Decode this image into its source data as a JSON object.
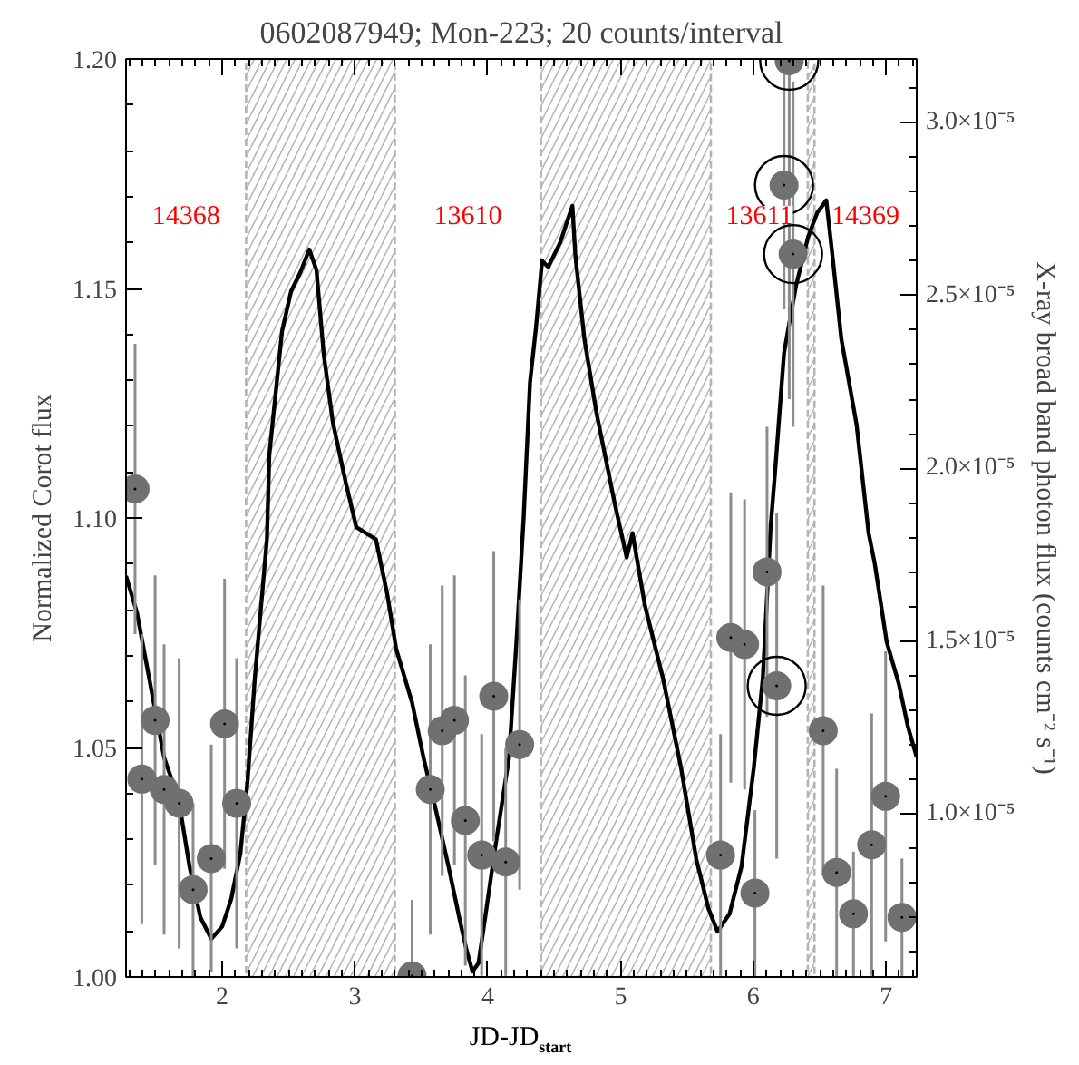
{
  "chart_data": {
    "type": "line",
    "title": "0602087949; Mon-223; 20 counts/interval",
    "xlabel": "JD-JD$_{start}$",
    "ylabel": "Normalized Corot flux",
    "y2label": "X-ray broad band photon flux (counts cm⁻² s⁻¹)",
    "xlim": [
      1.276,
      7.23
    ],
    "xticks": [
      2,
      3,
      4,
      5,
      6,
      7
    ],
    "ylim": [
      1.0,
      1.2
    ],
    "yticks": [
      {
        "value": 1.0,
        "label": "1.00"
      },
      {
        "value": 1.05,
        "label": "1.05"
      },
      {
        "value": 1.1,
        "label": "1.10"
      },
      {
        "value": 1.15,
        "label": "1.15"
      },
      {
        "value": 1.2,
        "label": "1.20"
      }
    ],
    "y2lim": [
      5.27e-06,
      3.185e-05
    ],
    "y2ticks": [
      {
        "value": 1e-05,
        "label": "1.0×10⁻⁵"
      },
      {
        "value": 1.5e-05,
        "label": "1.5×10⁻⁵"
      },
      {
        "value": 2e-05,
        "label": "2.0×10⁻⁵"
      },
      {
        "value": 2.5e-05,
        "label": "2.5×10⁻⁵"
      },
      {
        "value": 3e-05,
        "label": "3.0×10⁻⁵"
      }
    ],
    "grid": false,
    "bands": [
      {
        "axis": "x",
        "from": 2.18,
        "to": 3.3,
        "color": "#b4b4b4"
      },
      {
        "axis": "x",
        "from": 4.4,
        "to": 5.68,
        "color": "#b4b4b4"
      },
      {
        "axis": "x",
        "from": 6.41,
        "to": 6.46,
        "color": "#b4b4b4"
      }
    ],
    "annotations": [
      "14368",
      "13610",
      "13611",
      "14369"
    ],
    "series": [
      {
        "color": "#000000",
        "line_style": "solid",
        "marker": "none",
        "x": [
          1.276,
          1.358,
          1.467,
          1.563,
          1.672,
          1.754,
          1.836,
          1.918,
          2.0,
          2.068,
          2.137,
          2.191,
          2.246,
          2.337,
          2.355,
          2.451,
          2.519,
          2.587,
          2.656,
          2.71,
          2.765,
          2.833,
          2.929,
          3.01,
          3.157,
          3.243,
          3.31,
          3.43,
          3.516,
          3.612,
          3.704,
          3.79,
          3.84,
          3.885,
          3.93,
          3.977,
          4.063,
          4.16,
          4.22,
          4.27,
          4.318,
          4.363,
          4.409,
          4.455,
          4.545,
          4.637,
          4.66,
          4.728,
          4.818,
          4.955,
          5.046,
          5.09,
          5.183,
          5.32,
          5.456,
          5.57,
          5.661,
          5.73,
          5.821,
          5.911,
          6.003,
          6.071,
          6.13,
          6.163,
          6.231,
          6.322,
          6.413,
          6.481,
          6.549,
          6.595,
          6.663,
          6.777,
          6.868,
          6.914,
          7.004,
          7.096,
          7.164,
          7.23
        ],
        "values": [
          1.0874,
          1.0794,
          1.0625,
          1.0478,
          1.0387,
          1.0241,
          1.013,
          1.0083,
          1.011,
          1.017,
          1.0269,
          1.0427,
          1.0652,
          1.0954,
          1.1138,
          1.1407,
          1.1494,
          1.1534,
          1.1585,
          1.154,
          1.1356,
          1.1209,
          1.1079,
          1.098,
          1.0954,
          1.0834,
          1.0715,
          1.0598,
          1.0478,
          1.036,
          1.0241,
          1.0123,
          1.0059,
          1.0012,
          1.003,
          1.0123,
          1.0296,
          1.0478,
          1.075,
          1.1,
          1.1296,
          1.1415,
          1.156,
          1.1547,
          1.16,
          1.168,
          1.157,
          1.1389,
          1.123,
          1.1033,
          1.0914,
          1.0967,
          1.081,
          1.065,
          1.0455,
          1.0257,
          1.015,
          1.0099,
          1.0138,
          1.0241,
          1.0455,
          1.065,
          1.098,
          1.1099,
          1.136,
          1.1507,
          1.1613,
          1.1665,
          1.1692,
          1.1573,
          1.1389,
          1.1204,
          1.0967,
          1.0901,
          1.073,
          1.0638,
          1.0545,
          1.0479
        ]
      },
      {
        "type": "scatter",
        "axis": "y2",
        "color": "#707070",
        "marker": "circle",
        "x": [
          1.344,
          1.395,
          1.495,
          1.563,
          1.676,
          1.781,
          1.918,
          2.018,
          2.109,
          3.43,
          3.567,
          3.657,
          3.749,
          3.831,
          3.954,
          4.045,
          4.135,
          4.24,
          5.753,
          5.83,
          5.934,
          6.012,
          6.103,
          6.176,
          6.27,
          6.231,
          6.299,
          6.526,
          6.627,
          6.754,
          6.891,
          6.996,
          7.119
        ],
        "values": [
          1.94e-05,
          1.1e-05,
          1.27e-05,
          1.07e-05,
          1.03e-05,
          7.8e-06,
          8.7e-06,
          1.26e-05,
          1.03e-05,
          5.3e-06,
          1.07e-05,
          1.24e-05,
          1.27e-05,
          9.8e-06,
          8.8e-06,
          1.34e-05,
          8.6e-06,
          1.2e-05,
          8.8e-06,
          1.51e-05,
          1.49e-05,
          7.7e-06,
          1.7e-05,
          1.37e-05,
          3.18e-05,
          2.82e-05,
          2.62e-05,
          1.24e-05,
          8.3e-06,
          7.1e-06,
          9.1e-06,
          1.05e-05,
          7e-06
        ],
        "errors": [
          4.2e-06,
          4.2e-06,
          4.2e-06,
          4.2e-06,
          4.2e-06,
          2.5e-06,
          3.3e-06,
          4.2e-06,
          4.2e-06,
          [
            5.3e-06,
            7.5e-06
          ],
          4.2e-06,
          4.2e-06,
          4.2e-06,
          4.2e-06,
          3.5e-06,
          4.2e-06,
          3.3e-06,
          4.2e-06,
          3.5e-06,
          4.2e-06,
          4.2e-06,
          2.4e-06,
          4.2e-06,
          5e-06,
          [
            2.2e-05,
            3.18e-05
          ],
          3.6e-06,
          5e-06,
          4.2e-06,
          3e-06,
          1.8e-06,
          3.8e-06,
          4.2e-06,
          1.7e-06
        ]
      },
      {
        "type": "scatter",
        "axis": "y2",
        "color": "#000000",
        "marker": "circle",
        "x": [
          6.176,
          6.27,
          6.231,
          6.299
        ],
        "values": [
          1.37e-05,
          3.18e-05,
          2.82e-05,
          2.62e-05
        ]
      }
    ]
  }
}
